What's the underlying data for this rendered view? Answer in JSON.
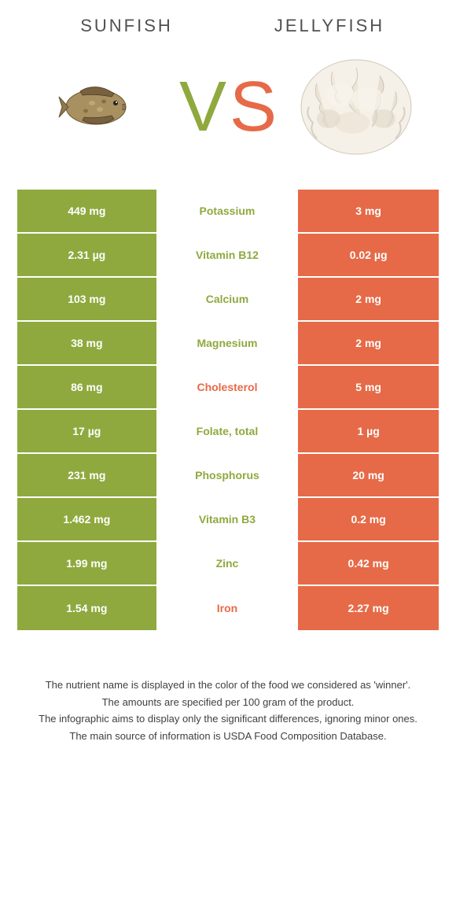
{
  "header": {
    "left_title": "Sunfish",
    "right_title": "Jellyfish"
  },
  "vs": {
    "v": "V",
    "s": "S"
  },
  "colors": {
    "left_bg": "#8fa93e",
    "right_bg": "#e66a47",
    "middle_bg": "#ffffff",
    "left_text_color": "#8fa93e",
    "right_text_color": "#e66a47",
    "white": "#ffffff"
  },
  "rows": [
    {
      "left": "449 mg",
      "label": "Potassium",
      "right": "3 mg",
      "winner": "left"
    },
    {
      "left": "2.31 µg",
      "label": "Vitamin B12",
      "right": "0.02 µg",
      "winner": "left"
    },
    {
      "left": "103 mg",
      "label": "Calcium",
      "right": "2 mg",
      "winner": "left"
    },
    {
      "left": "38 mg",
      "label": "Magnesium",
      "right": "2 mg",
      "winner": "left"
    },
    {
      "left": "86 mg",
      "label": "Cholesterol",
      "right": "5 mg",
      "winner": "right"
    },
    {
      "left": "17 µg",
      "label": "Folate, total",
      "right": "1 µg",
      "winner": "left"
    },
    {
      "left": "231 mg",
      "label": "Phosphorus",
      "right": "20 mg",
      "winner": "left"
    },
    {
      "left": "1.462 mg",
      "label": "Vitamin B3",
      "right": "0.2 mg",
      "winner": "left"
    },
    {
      "left": "1.99 mg",
      "label": "Zinc",
      "right": "0.42 mg",
      "winner": "left"
    },
    {
      "left": "1.54 mg",
      "label": "Iron",
      "right": "2.27 mg",
      "winner": "right"
    }
  ],
  "footnote": {
    "line1": "The nutrient name is displayed in the color of the food we considered as 'winner'.",
    "line2": "The amounts are specified per 100 gram of the product.",
    "line3": "The infographic aims to display only the significant differences, ignoring minor ones.",
    "line4": "The main source of information is USDA Food Composition Database."
  }
}
